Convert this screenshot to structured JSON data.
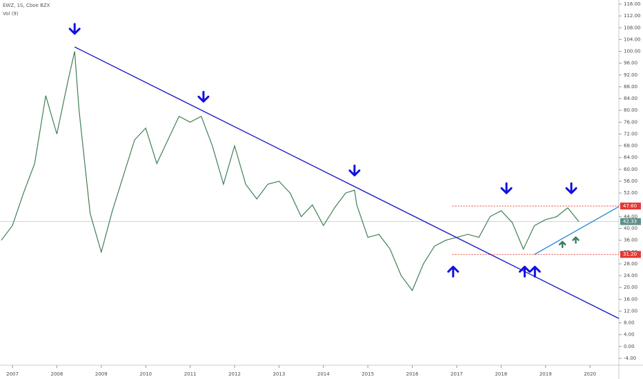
{
  "chart_data": {
    "type": "line",
    "title": "EWZ, 1S, Cboe BZX",
    "subtitle": "Vol (9)",
    "color": "#3f7f55",
    "x": [
      2006.75,
      2007.0,
      2007.25,
      2007.5,
      2007.75,
      2008.0,
      2008.25,
      2008.4,
      2008.5,
      2008.75,
      2009.0,
      2009.25,
      2009.5,
      2009.75,
      2010.0,
      2010.25,
      2010.5,
      2010.75,
      2011.0,
      2011.25,
      2011.5,
      2011.75,
      2012.0,
      2012.25,
      2012.5,
      2012.75,
      2013.0,
      2013.25,
      2013.5,
      2013.75,
      2014.0,
      2014.25,
      2014.5,
      2014.7,
      2014.75,
      2015.0,
      2015.25,
      2015.5,
      2015.75,
      2016.0,
      2016.25,
      2016.5,
      2016.75,
      2017.0,
      2017.25,
      2017.5,
      2017.75,
      2018.0,
      2018.25,
      2018.5,
      2018.75,
      2019.0,
      2019.25,
      2019.5,
      2019.75
    ],
    "values": [
      36,
      41,
      52,
      62,
      85,
      72,
      90,
      100,
      80,
      45,
      32,
      46,
      58,
      70,
      74,
      62,
      70,
      78,
      76,
      78,
      68,
      55,
      68,
      55,
      50,
      55,
      56,
      52,
      44,
      48,
      41,
      47,
      52,
      53,
      48,
      37,
      38,
      33,
      24,
      19,
      28,
      34,
      36,
      37,
      38,
      37,
      44,
      46,
      42,
      33,
      41,
      43,
      44,
      47,
      42.33
    ],
    "xlim": [
      2006.72,
      2020.65
    ],
    "xticks": [
      2007,
      2008,
      2009,
      2010,
      2011,
      2012,
      2013,
      2014,
      2015,
      2016,
      2017,
      2018,
      2019,
      2020
    ],
    "ylim": [
      -4,
      116
    ],
    "yticks": [
      {
        "value": -4,
        "label": "-4.00"
      },
      {
        "value": 0,
        "label": "0.00"
      },
      {
        "value": 4,
        "label": "4.00"
      },
      {
        "value": 8,
        "label": "8.00"
      },
      {
        "value": 12,
        "label": "12.00"
      },
      {
        "value": 16,
        "label": "16.00"
      },
      {
        "value": 20,
        "label": "20.00"
      },
      {
        "value": 24,
        "label": "24.00"
      },
      {
        "value": 28,
        "label": "28.00"
      },
      {
        "value": 32,
        "label": "32.00"
      },
      {
        "value": 36,
        "label": "36.00"
      },
      {
        "value": 40,
        "label": "40.00"
      },
      {
        "value": 44,
        "label": "44.00"
      },
      {
        "value": 48,
        "label": "48.00"
      },
      {
        "value": 52,
        "label": "52.00"
      },
      {
        "value": 56,
        "label": "56.00"
      },
      {
        "value": 60,
        "label": "60.00"
      },
      {
        "value": 64,
        "label": "64.00"
      },
      {
        "value": 68,
        "label": "68.00"
      },
      {
        "value": 72,
        "label": "72.00"
      },
      {
        "value": 76,
        "label": "76.00"
      },
      {
        "value": 80,
        "label": "80.00"
      },
      {
        "value": 84,
        "label": "84.00"
      },
      {
        "value": 88,
        "label": "88.00"
      },
      {
        "value": 92,
        "label": "92.00"
      },
      {
        "value": 96,
        "label": "96.00"
      },
      {
        "value": 100,
        "label": "100.00"
      },
      {
        "value": 104,
        "label": "104.00"
      },
      {
        "value": 108,
        "label": "108.00"
      },
      {
        "value": 112,
        "label": "112.00"
      },
      {
        "value": 116,
        "label": "116.00"
      }
    ],
    "trendlines": [
      {
        "x": [
          2008.4,
          2020.65
        ],
        "y": [
          101.5,
          9.5
        ],
        "color": "#1c1cc8"
      },
      {
        "x": [
          2018.75,
          2020.65
        ],
        "y": [
          31.2,
          47.4
        ],
        "color": "#2f8fd8"
      }
    ],
    "levels": [
      {
        "value": 47.6,
        "label": "47.60",
        "from": 2016.9,
        "color": "#e53935"
      },
      {
        "value": 31.2,
        "label": "31.20",
        "from": 2016.9,
        "color": "#e53935"
      }
    ],
    "last_price": {
      "value": 42.33,
      "label": "42.33",
      "color": "#5e8f88"
    },
    "arrows": [
      {
        "x": 2008.4,
        "y": 106,
        "dir": "down",
        "color": "#1010e0"
      },
      {
        "x": 2011.3,
        "y": 83,
        "dir": "down",
        "color": "#1010e0"
      },
      {
        "x": 2014.7,
        "y": 58,
        "dir": "down",
        "color": "#1010e0"
      },
      {
        "x": 2018.12,
        "y": 52,
        "dir": "down",
        "color": "#1010e0"
      },
      {
        "x": 2019.58,
        "y": 52,
        "dir": "down",
        "color": "#1010e0"
      },
      {
        "x": 2016.92,
        "y": 27,
        "dir": "up",
        "color": "#1010e0"
      },
      {
        "x": 2018.53,
        "y": 27,
        "dir": "up",
        "color": "#1010e0"
      },
      {
        "x": 2018.76,
        "y": 27,
        "dir": "up",
        "color": "#1010e0"
      },
      {
        "x": 2019.38,
        "y": 35.5,
        "dir": "up",
        "color": "#3e7d62"
      },
      {
        "x": 2019.68,
        "y": 37,
        "dir": "up",
        "color": "#3e7d62"
      }
    ]
  }
}
